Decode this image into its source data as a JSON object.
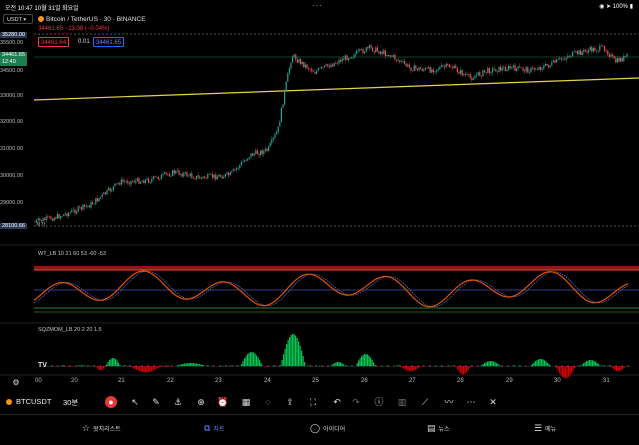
{
  "status_bar": {
    "time": "오전 10:47",
    "date": "10월 31일 화요일",
    "battery": "100%"
  },
  "header": {
    "symbol": "USDT",
    "title": "Bitcoin / TetherUS · 30 · BINANCE",
    "change": "34461.65 −13.08 (−0.04%)",
    "sell_price": "34461.64",
    "spread": "0.01",
    "buy_price": "34461.65"
  },
  "price_axis": {
    "labels": [
      "35500.00",
      "34500.00",
      "33000.00",
      "32000.00",
      "31000.00",
      "30000.00",
      "29000.00"
    ],
    "top_tag": "35280.00",
    "current_tag": "34461.65",
    "countdown": "12:40",
    "low_tag": "28100.66",
    "low_caption": "저가"
  },
  "indicators": {
    "wt": "WT_LB 10 21 60 53 -60 -53",
    "sqz": "SQZMOM_LB 20 2 20 1.5"
  },
  "time_axis": {
    "labels": [
      "00",
      "20",
      "21",
      "22",
      "23",
      "24",
      "25",
      "26",
      "27",
      "28",
      "29",
      "30",
      "31"
    ]
  },
  "toolbar": {
    "symbol": "BTCUSDT",
    "interval": "30분"
  },
  "nav": {
    "items": [
      {
        "label": "왓치리스트",
        "icon": "star-icon"
      },
      {
        "label": "차트",
        "icon": "chart-icon"
      },
      {
        "label": "아이디어",
        "icon": "bulb-icon"
      },
      {
        "label": "뉴스",
        "icon": "news-icon"
      },
      {
        "label": "메뉴",
        "icon": "menu-icon"
      }
    ]
  },
  "colors": {
    "up": "#26a69a",
    "down": "#ef5350",
    "accent": "#2962ff",
    "trend": "#e5d34a"
  }
}
